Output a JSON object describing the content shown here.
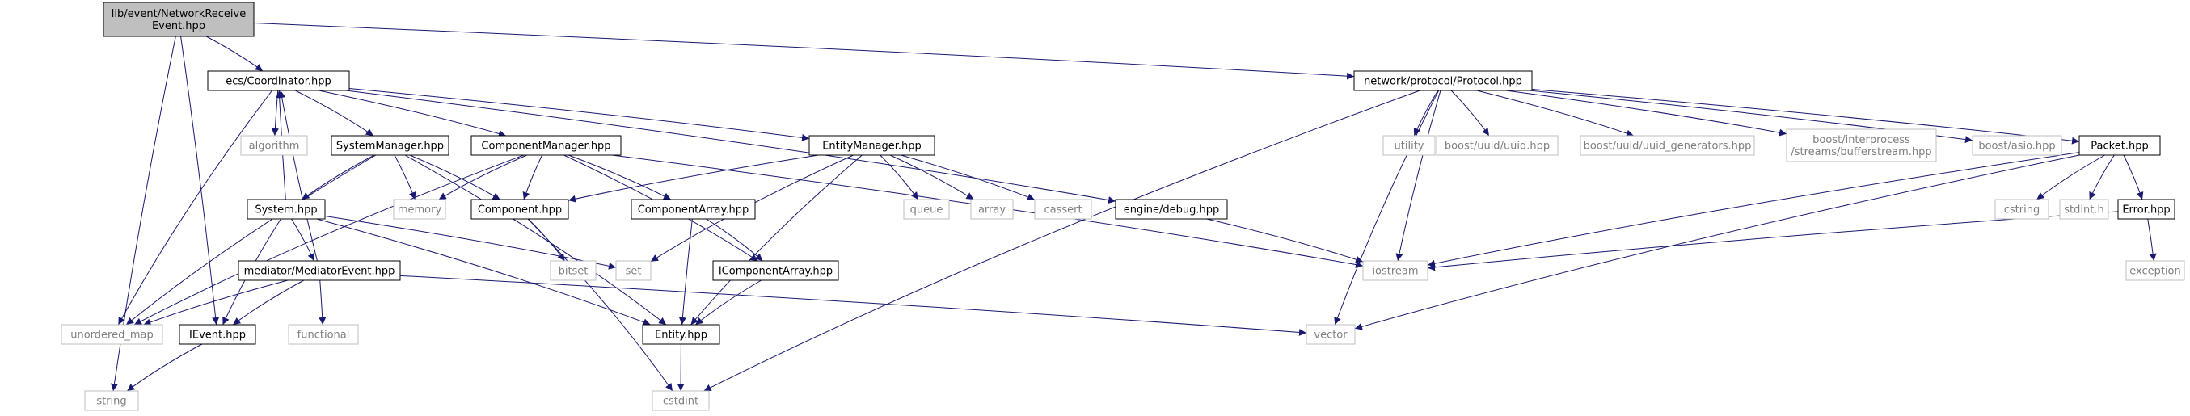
{
  "colors": {
    "edge": "#191970",
    "root_fill": "#bfbfbf",
    "root_border": "#000000",
    "node_border": "#000000",
    "ext_border": "#bfbfbf",
    "ext_text": "#7f7f7f",
    "text": "#000000"
  },
  "nodes": {
    "root": {
      "lines": [
        "lib/event/NetworkReceive",
        "Event.hpp"
      ],
      "kind": "root"
    },
    "coord": {
      "lines": [
        "ecs/Coordinator.hpp"
      ],
      "kind": "file"
    },
    "protocol": {
      "lines": [
        "network/protocol/Protocol.hpp"
      ],
      "kind": "file"
    },
    "algorithm": {
      "lines": [
        "algorithm"
      ],
      "kind": "ext"
    },
    "sysmgr": {
      "lines": [
        "SystemManager.hpp"
      ],
      "kind": "file"
    },
    "compmgr": {
      "lines": [
        "ComponentManager.hpp"
      ],
      "kind": "file"
    },
    "entmgr": {
      "lines": [
        "EntityManager.hpp"
      ],
      "kind": "file"
    },
    "debug": {
      "lines": [
        "engine/debug.hpp"
      ],
      "kind": "file"
    },
    "memory": {
      "lines": [
        "memory"
      ],
      "kind": "ext"
    },
    "component": {
      "lines": [
        "Component.hpp"
      ],
      "kind": "file"
    },
    "comparr": {
      "lines": [
        "ComponentArray.hpp"
      ],
      "kind": "file"
    },
    "queue": {
      "lines": [
        "queue"
      ],
      "kind": "ext"
    },
    "array": {
      "lines": [
        "array"
      ],
      "kind": "ext"
    },
    "cassert": {
      "lines": [
        "cassert"
      ],
      "kind": "ext"
    },
    "system": {
      "lines": [
        "System.hpp"
      ],
      "kind": "file"
    },
    "bitset": {
      "lines": [
        "bitset"
      ],
      "kind": "ext"
    },
    "set": {
      "lines": [
        "set"
      ],
      "kind": "ext"
    },
    "mediator": {
      "lines": [
        "mediator/MediatorEvent.hpp"
      ],
      "kind": "file"
    },
    "icomparr": {
      "lines": [
        "IComponentArray.hpp"
      ],
      "kind": "file"
    },
    "umap": {
      "lines": [
        "unordered_map"
      ],
      "kind": "ext"
    },
    "functional": {
      "lines": [
        "functional"
      ],
      "kind": "ext"
    },
    "ievent": {
      "lines": [
        "IEvent.hpp"
      ],
      "kind": "file"
    },
    "entity": {
      "lines": [
        "Entity.hpp"
      ],
      "kind": "file"
    },
    "string": {
      "lines": [
        "string"
      ],
      "kind": "ext"
    },
    "cstdint": {
      "lines": [
        "cstdint"
      ],
      "kind": "ext"
    },
    "vector": {
      "lines": [
        "vector"
      ],
      "kind": "ext"
    },
    "iostream": {
      "lines": [
        "iostream"
      ],
      "kind": "ext"
    },
    "utility": {
      "lines": [
        "utility"
      ],
      "kind": "ext"
    },
    "uuid": {
      "lines": [
        "boost/uuid/uuid.hpp"
      ],
      "kind": "ext"
    },
    "uuidgen": {
      "lines": [
        "boost/uuid/uuid_generators.hpp"
      ],
      "kind": "ext"
    },
    "bufstream": {
      "lines": [
        "boost/interprocess",
        "/streams/bufferstream.hpp"
      ],
      "kind": "ext"
    },
    "asio": {
      "lines": [
        "boost/asio.hpp"
      ],
      "kind": "ext"
    },
    "packet": {
      "lines": [
        "Packet.hpp"
      ],
      "kind": "file"
    },
    "cstring": {
      "lines": [
        "cstring"
      ],
      "kind": "ext"
    },
    "stdint": {
      "lines": [
        "stdint.h"
      ],
      "kind": "ext"
    },
    "error": {
      "lines": [
        "Error.hpp"
      ],
      "kind": "file"
    },
    "exception": {
      "lines": [
        "exception"
      ],
      "kind": "ext"
    }
  },
  "edges": [
    [
      "root",
      "coord"
    ],
    [
      "root",
      "protocol"
    ],
    [
      "root",
      "string"
    ],
    [
      "root",
      "ievent"
    ],
    [
      "coord",
      "algorithm"
    ],
    [
      "coord",
      "sysmgr"
    ],
    [
      "coord",
      "compmgr"
    ],
    [
      "coord",
      "entmgr"
    ],
    [
      "coord",
      "debug"
    ],
    [
      "coord",
      "umap"
    ],
    [
      "sysmgr",
      "system"
    ],
    [
      "sysmgr",
      "memory"
    ],
    [
      "sysmgr",
      "component"
    ],
    [
      "sysmgr",
      "entity"
    ],
    [
      "sysmgr",
      "umap"
    ],
    [
      "compmgr",
      "memory"
    ],
    [
      "compmgr",
      "component"
    ],
    [
      "compmgr",
      "comparr"
    ],
    [
      "compmgr",
      "icomparr"
    ],
    [
      "compmgr",
      "iostream"
    ],
    [
      "compmgr",
      "umap"
    ],
    [
      "entmgr",
      "component"
    ],
    [
      "entmgr",
      "queue"
    ],
    [
      "entmgr",
      "array"
    ],
    [
      "entmgr",
      "cassert"
    ],
    [
      "entmgr",
      "set"
    ],
    [
      "entmgr",
      "entity"
    ],
    [
      "system",
      "coord"
    ],
    [
      "system",
      "set"
    ],
    [
      "system",
      "entity"
    ],
    [
      "system",
      "mediator"
    ],
    [
      "system",
      "ievent"
    ],
    [
      "mediator",
      "coord"
    ],
    [
      "mediator",
      "ievent"
    ],
    [
      "mediator",
      "umap"
    ],
    [
      "mediator",
      "functional"
    ],
    [
      "mediator",
      "vector"
    ],
    [
      "component",
      "bitset"
    ],
    [
      "component",
      "cstdint"
    ],
    [
      "comparr",
      "entity"
    ],
    [
      "comparr",
      "icomparr"
    ],
    [
      "icomparr",
      "entity"
    ],
    [
      "entity",
      "cstdint"
    ],
    [
      "ievent",
      "string"
    ],
    [
      "debug",
      "iostream"
    ],
    [
      "protocol",
      "cstdint"
    ],
    [
      "protocol",
      "vector"
    ],
    [
      "protocol",
      "iostream"
    ],
    [
      "protocol",
      "utility"
    ],
    [
      "protocol",
      "uuid"
    ],
    [
      "protocol",
      "uuidgen"
    ],
    [
      "protocol",
      "bufstream"
    ],
    [
      "protocol",
      "asio"
    ],
    [
      "protocol",
      "packet"
    ],
    [
      "packet",
      "iostream"
    ],
    [
      "packet",
      "vector"
    ],
    [
      "packet",
      "cstring"
    ],
    [
      "packet",
      "stdint"
    ],
    [
      "packet",
      "error"
    ],
    [
      "error",
      "iostream"
    ],
    [
      "error",
      "exception"
    ]
  ]
}
